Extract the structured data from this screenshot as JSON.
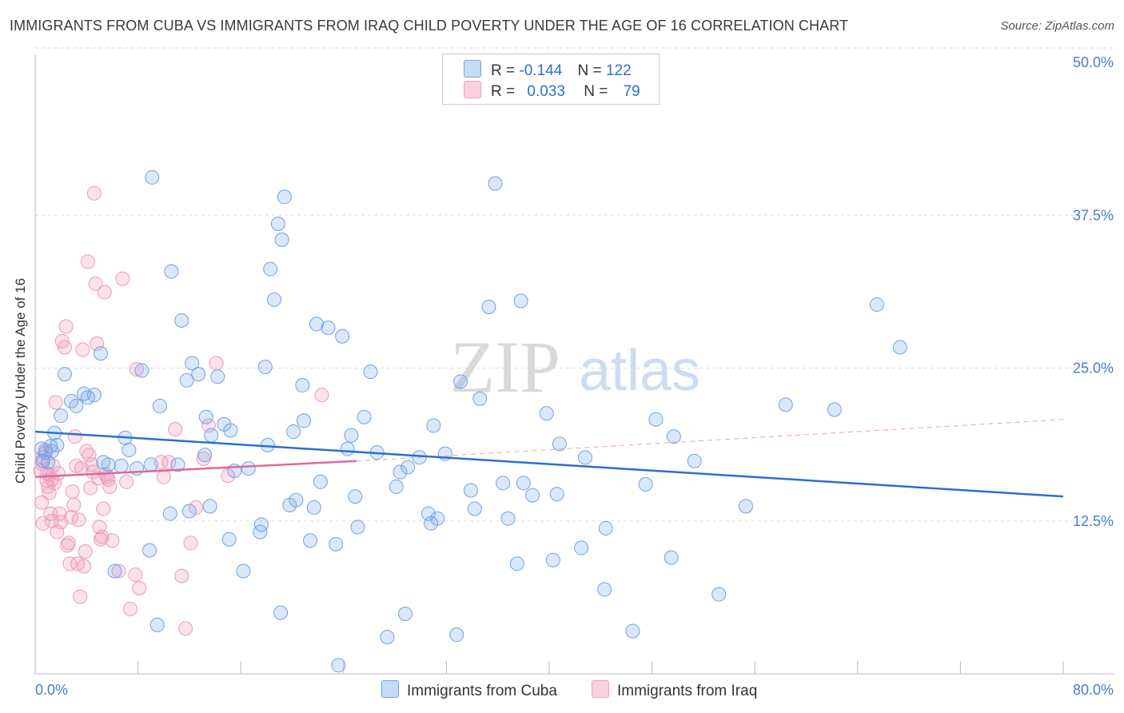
{
  "header": {
    "title": "IMMIGRANTS FROM CUBA VS IMMIGRANTS FROM IRAQ CHILD POVERTY UNDER THE AGE OF 16 CORRELATION CHART",
    "source": "Source: ZipAtlas.com"
  },
  "watermark": {
    "zip": "ZIP",
    "atlas": "atlas"
  },
  "legend": {
    "rows": [
      {
        "r_label": "R =",
        "r_value": "-0.144",
        "n_label": "N =",
        "n_value": "122"
      },
      {
        "r_label": "R =",
        "r_value": "0.033",
        "n_label": "N =",
        "n_value": "79"
      }
    ]
  },
  "chart_data": {
    "type": "scatter",
    "title": "IMMIGRANTS FROM CUBA VS IMMIGRANTS FROM IRAQ CHILD POVERTY UNDER THE AGE OF 16 CORRELATION CHART",
    "xlabel": "",
    "ylabel": "Child Poverty Under the Age of 16",
    "xlim": [
      0,
      80
    ],
    "ylim": [
      0,
      50
    ],
    "x_tick_labels": [
      "0.0%",
      "80.0%"
    ],
    "y_ticks": [
      12.5,
      25.0,
      37.5,
      50.0
    ],
    "y_tick_labels": [
      "12.5%",
      "25.0%",
      "37.5%",
      "50.0%"
    ],
    "grid": true,
    "legend_position": "top-center",
    "colors": {
      "cuba": "#6fa3e6",
      "iraq": "#f0a0bc",
      "cuba_line": "#2a6fd0",
      "iraq_line": "#e0689a"
    },
    "series": [
      {
        "name": "Immigrants from Cuba",
        "r": -0.144,
        "n": 122,
        "trend": {
          "x0": 0,
          "y0": 19.8,
          "x1": 80,
          "y1": 14.5
        },
        "points": [
          [
            0.5,
            18.4
          ],
          [
            0.8,
            18.1
          ],
          [
            1.0,
            17.3
          ],
          [
            1.2,
            18.6
          ],
          [
            1.5,
            19.7
          ],
          [
            1.7,
            18.7
          ],
          [
            2.0,
            21.1
          ],
          [
            2.3,
            24.5
          ],
          [
            2.8,
            22.3
          ],
          [
            3.2,
            21.9
          ],
          [
            3.8,
            22.9
          ],
          [
            4.1,
            22.6
          ],
          [
            4.6,
            22.8
          ],
          [
            5.1,
            26.2
          ],
          [
            5.3,
            17.3
          ],
          [
            5.7,
            17.1
          ],
          [
            6.2,
            8.4
          ],
          [
            6.7,
            17.0
          ],
          [
            7.0,
            19.3
          ],
          [
            7.3,
            18.3
          ],
          [
            7.9,
            16.8
          ],
          [
            8.3,
            24.8
          ],
          [
            8.9,
            10.1
          ],
          [
            9.0,
            17.1
          ],
          [
            9.5,
            4.0
          ],
          [
            9.7,
            21.9
          ],
          [
            9.1,
            40.6
          ],
          [
            10.5,
            13.1
          ],
          [
            10.6,
            32.9
          ],
          [
            11.1,
            17.1
          ],
          [
            11.4,
            28.9
          ],
          [
            11.8,
            24.0
          ],
          [
            12.0,
            13.3
          ],
          [
            12.2,
            25.4
          ],
          [
            12.7,
            24.5
          ],
          [
            13.2,
            17.9
          ],
          [
            13.6,
            13.7
          ],
          [
            13.3,
            21.0
          ],
          [
            13.7,
            19.5
          ],
          [
            14.2,
            24.3
          ],
          [
            14.7,
            20.4
          ],
          [
            15.1,
            11.0
          ],
          [
            15.2,
            19.9
          ],
          [
            15.5,
            16.6
          ],
          [
            16.2,
            8.4
          ],
          [
            16.6,
            16.8
          ],
          [
            17.5,
            11.6
          ],
          [
            17.6,
            12.2
          ],
          [
            17.9,
            25.1
          ],
          [
            18.1,
            18.7
          ],
          [
            18.3,
            33.1
          ],
          [
            18.6,
            30.6
          ],
          [
            18.9,
            36.8
          ],
          [
            19.1,
            5.0
          ],
          [
            19.2,
            35.5
          ],
          [
            19.4,
            39.0
          ],
          [
            19.8,
            13.8
          ],
          [
            20.1,
            19.8
          ],
          [
            20.3,
            14.2
          ],
          [
            20.9,
            20.7
          ],
          [
            20.8,
            23.6
          ],
          [
            21.4,
            10.9
          ],
          [
            21.7,
            13.6
          ],
          [
            21.9,
            28.6
          ],
          [
            22.2,
            15.7
          ],
          [
            22.8,
            28.3
          ],
          [
            23.4,
            10.6
          ],
          [
            23.9,
            27.6
          ],
          [
            23.6,
            0.7
          ],
          [
            24.3,
            18.4
          ],
          [
            24.6,
            19.5
          ],
          [
            24.9,
            14.5
          ],
          [
            25.1,
            12.0
          ],
          [
            25.6,
            21.0
          ],
          [
            26.1,
            24.7
          ],
          [
            26.6,
            18.1
          ],
          [
            27.4,
            3.0
          ],
          [
            28.1,
            15.3
          ],
          [
            28.4,
            16.5
          ],
          [
            28.8,
            4.9
          ],
          [
            29.0,
            16.9
          ],
          [
            29.9,
            17.7
          ],
          [
            30.6,
            13.1
          ],
          [
            30.8,
            12.3
          ],
          [
            31.0,
            20.3
          ],
          [
            31.3,
            12.7
          ],
          [
            31.9,
            18.0
          ],
          [
            32.8,
            3.2
          ],
          [
            33.1,
            23.9
          ],
          [
            33.9,
            15.0
          ],
          [
            34.2,
            13.5
          ],
          [
            34.6,
            22.5
          ],
          [
            35.3,
            30.0
          ],
          [
            35.8,
            40.1
          ],
          [
            36.4,
            15.6
          ],
          [
            36.8,
            12.7
          ],
          [
            37.5,
            9.0
          ],
          [
            37.8,
            30.5
          ],
          [
            38.0,
            15.6
          ],
          [
            38.7,
            14.6
          ],
          [
            39.8,
            21.3
          ],
          [
            40.3,
            9.3
          ],
          [
            40.6,
            14.7
          ],
          [
            40.8,
            18.8
          ],
          [
            42.5,
            10.3
          ],
          [
            42.8,
            17.7
          ],
          [
            44.3,
            6.9
          ],
          [
            44.4,
            11.9
          ],
          [
            46.5,
            3.5
          ],
          [
            47.5,
            15.5
          ],
          [
            48.3,
            20.8
          ],
          [
            49.5,
            9.5
          ],
          [
            49.7,
            19.4
          ],
          [
            51.3,
            17.4
          ],
          [
            53.2,
            6.5
          ],
          [
            55.3,
            13.7
          ],
          [
            58.4,
            22.0
          ],
          [
            62.2,
            21.6
          ],
          [
            65.5,
            30.2
          ],
          [
            67.3,
            26.7
          ],
          [
            0.6,
            17.4
          ],
          [
            1.3,
            18.2
          ]
        ]
      },
      {
        "name": "Immigrants from Iraq",
        "r": 0.033,
        "n": 79,
        "trend": {
          "x0": 0,
          "y0": 16.1,
          "x1": 25,
          "y1": 17.4
        },
        "trend_extension": {
          "x0": 25,
          "y0": 17.4,
          "x1": 80,
          "y1": 20.8
        },
        "points": [
          [
            0.4,
            16.6
          ],
          [
            0.5,
            17.2
          ],
          [
            0.6,
            17.7
          ],
          [
            0.8,
            18.3
          ],
          [
            0.9,
            16.4
          ],
          [
            1.0,
            15.3
          ],
          [
            1.1,
            14.8
          ],
          [
            1.2,
            13.1
          ],
          [
            1.3,
            12.5
          ],
          [
            1.4,
            17.0
          ],
          [
            0.5,
            14.0
          ],
          [
            0.6,
            12.3
          ],
          [
            0.9,
            15.8
          ],
          [
            1.1,
            16.3
          ],
          [
            1.3,
            15.9
          ],
          [
            1.5,
            15.6
          ],
          [
            1.7,
            11.6
          ],
          [
            1.6,
            22.2
          ],
          [
            1.8,
            16.4
          ],
          [
            1.9,
            13.1
          ],
          [
            2.0,
            12.4
          ],
          [
            2.1,
            27.2
          ],
          [
            2.3,
            26.7
          ],
          [
            2.4,
            28.4
          ],
          [
            2.5,
            10.5
          ],
          [
            2.6,
            10.7
          ],
          [
            2.7,
            9.0
          ],
          [
            2.8,
            12.8
          ],
          [
            2.9,
            14.9
          ],
          [
            3.0,
            13.8
          ],
          [
            3.1,
            19.4
          ],
          [
            3.2,
            17.0
          ],
          [
            3.3,
            9.0
          ],
          [
            3.4,
            12.6
          ],
          [
            3.5,
            6.3
          ],
          [
            3.6,
            16.8
          ],
          [
            3.7,
            26.5
          ],
          [
            3.8,
            8.8
          ],
          [
            3.9,
            10.0
          ],
          [
            4.0,
            18.2
          ],
          [
            4.1,
            33.7
          ],
          [
            4.2,
            17.9
          ],
          [
            4.3,
            15.2
          ],
          [
            4.4,
            17.1
          ],
          [
            4.5,
            16.5
          ],
          [
            4.6,
            39.3
          ],
          [
            4.7,
            31.9
          ],
          [
            4.8,
            27.0
          ],
          [
            4.9,
            16.0
          ],
          [
            5.0,
            12.0
          ],
          [
            5.1,
            11.0
          ],
          [
            5.2,
            11.2
          ],
          [
            5.3,
            13.5
          ],
          [
            5.4,
            31.2
          ],
          [
            5.5,
            16.3
          ],
          [
            5.6,
            16.1
          ],
          [
            5.7,
            15.9
          ],
          [
            5.8,
            15.3
          ],
          [
            6.0,
            10.9
          ],
          [
            6.5,
            8.4
          ],
          [
            6.8,
            32.3
          ],
          [
            7.1,
            15.7
          ],
          [
            7.4,
            5.3
          ],
          [
            7.8,
            8.1
          ],
          [
            7.9,
            24.9
          ],
          [
            8.1,
            7.0
          ],
          [
            9.8,
            17.3
          ],
          [
            10.0,
            16.1
          ],
          [
            10.4,
            17.3
          ],
          [
            10.9,
            20.0
          ],
          [
            11.4,
            8.0
          ],
          [
            11.7,
            3.7
          ],
          [
            12.1,
            10.7
          ],
          [
            12.5,
            13.6
          ],
          [
            13.1,
            17.6
          ],
          [
            13.5,
            20.3
          ],
          [
            14.1,
            25.4
          ],
          [
            15.0,
            16.2
          ],
          [
            22.3,
            22.8
          ]
        ]
      }
    ]
  },
  "bottom_legend": {
    "items": [
      {
        "label": "Immigrants from Cuba"
      },
      {
        "label": "Immigrants from Iraq"
      }
    ]
  }
}
